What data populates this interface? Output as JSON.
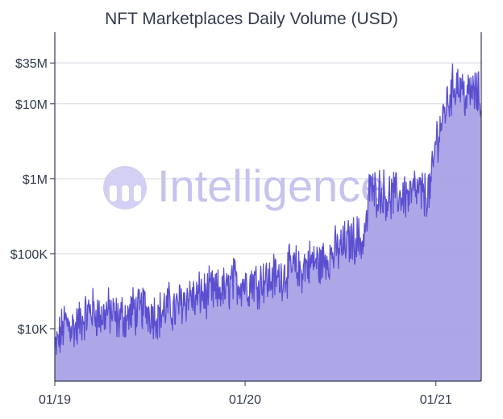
{
  "chart_data": {
    "type": "area",
    "title": "NFT Marketplaces Daily Volume (USD)",
    "watermark": "Intelligence",
    "y_scale": "log",
    "ylim": [
      2000,
      90000000
    ],
    "y_ticks": [
      {
        "value": 10000,
        "label": "$10K"
      },
      {
        "value": 100000,
        "label": "$100K"
      },
      {
        "value": 1000000,
        "label": "$1M"
      },
      {
        "value": 10000000,
        "label": "$10M"
      },
      {
        "value": 35000000,
        "label": "$35M"
      }
    ],
    "x_ticks": [
      {
        "value": 0,
        "label": "01/19"
      },
      {
        "value": 365,
        "label": "01/20"
      },
      {
        "value": 731,
        "label": "01/21"
      }
    ],
    "x_range_days": [
      0,
      818
    ],
    "xlabel": "",
    "ylabel": "",
    "colors": {
      "line": "#5a4fcf",
      "fill": "#a9a2e6"
    },
    "series": [
      {
        "name": "Daily Volume",
        "x_days": [
          0,
          10,
          20,
          30,
          40,
          50,
          60,
          70,
          80,
          90,
          100,
          110,
          120,
          130,
          140,
          150,
          160,
          170,
          180,
          190,
          200,
          210,
          220,
          230,
          240,
          250,
          260,
          270,
          280,
          290,
          300,
          310,
          320,
          330,
          340,
          350,
          360,
          370,
          380,
          390,
          400,
          410,
          420,
          430,
          440,
          450,
          460,
          470,
          480,
          490,
          500,
          510,
          520,
          530,
          540,
          550,
          560,
          570,
          580,
          590,
          600,
          605,
          610,
          620,
          630,
          640,
          650,
          660,
          670,
          680,
          690,
          700,
          710,
          720,
          725,
          730,
          740,
          750,
          760,
          770,
          780,
          790,
          800,
          810,
          818
        ],
        "values": [
          5000,
          8000,
          12000,
          11000,
          10000,
          13000,
          15000,
          18000,
          16000,
          14000,
          17000,
          16000,
          13000,
          15000,
          14000,
          18000,
          16000,
          20000,
          17000,
          16000,
          15000,
          18000,
          20000,
          17000,
          22000,
          25000,
          28000,
          23000,
          30000,
          27000,
          32000,
          28000,
          35000,
          30000,
          45000,
          40000,
          42000,
          38000,
          45000,
          40000,
          48000,
          42000,
          50000,
          46000,
          55000,
          60000,
          65000,
          55000,
          70000,
          75000,
          80000,
          70000,
          90000,
          95000,
          110000,
          120000,
          140000,
          150000,
          160000,
          140000,
          300000,
          1000000,
          600000,
          700000,
          650000,
          550000,
          600000,
          580000,
          620000,
          560000,
          700000,
          640000,
          600000,
          700000,
          1200000,
          3000000,
          5000000,
          9000000,
          14000000,
          20000000,
          16000000,
          12000000,
          15000000,
          13000000,
          11000000
        ]
      }
    ]
  }
}
